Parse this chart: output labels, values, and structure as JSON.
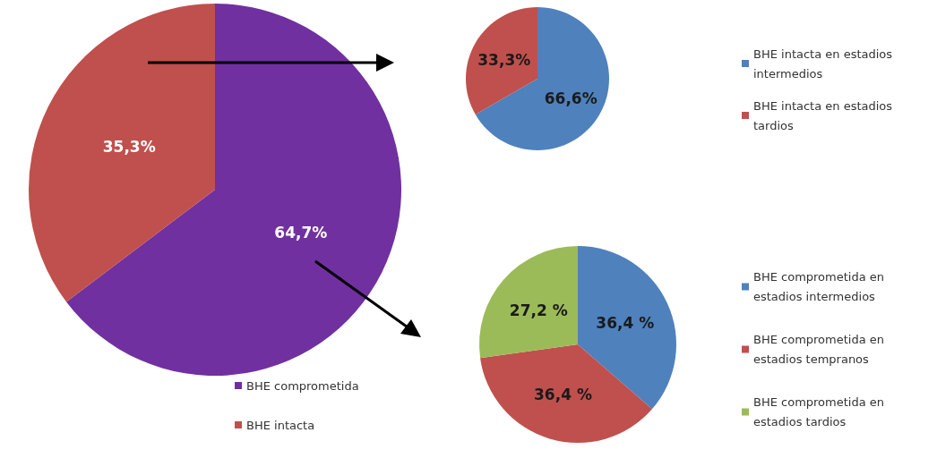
{
  "chart_data": [
    {
      "type": "pie",
      "categories": [
        "BHE comprometida",
        "BHE intacta"
      ],
      "values": [
        64.7,
        35.3
      ],
      "colors": [
        "#7030a0",
        "#c0504d"
      ],
      "value_labels": [
        "64,7%",
        "35,3%"
      ],
      "legend": "bottom right"
    },
    {
      "type": "pie",
      "categories": [
        "BHE intacta en estadios intermedios",
        "BHE intacta en estadios tardios"
      ],
      "values": [
        66.6,
        33.3
      ],
      "colors": [
        "#4f81bd",
        "#c0504d"
      ],
      "value_labels": [
        "66,6%",
        "33,3%"
      ],
      "legend": "right"
    },
    {
      "type": "pie",
      "categories": [
        "BHE comprometida en estadios intermedios",
        "BHE comprometida en estadios tempranos",
        "BHE comprometida en estadios tardios"
      ],
      "values": [
        36.4,
        36.4,
        27.2
      ],
      "colors": [
        "#4f81bd",
        "#c0504d",
        "#9bbb59"
      ],
      "value_labels": [
        "36,4 %",
        "36,4 %",
        "27,2 %"
      ],
      "legend": "right"
    }
  ]
}
